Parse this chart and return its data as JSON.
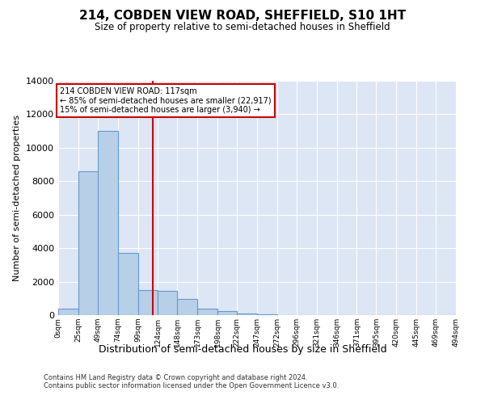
{
  "title": "214, COBDEN VIEW ROAD, SHEFFIELD, S10 1HT",
  "subtitle": "Size of property relative to semi-detached houses in Sheffield",
  "xlabel": "Distribution of semi-detached houses by size in Sheffield",
  "ylabel": "Number of semi-detached properties",
  "footnote1": "Contains HM Land Registry data © Crown copyright and database right 2024.",
  "footnote2": "Contains public sector information licensed under the Open Government Licence v3.0.",
  "property_label": "214 COBDEN VIEW ROAD: 117sqm",
  "pct_smaller_text": "← 85% of semi-detached houses are smaller (22,917)",
  "pct_larger_text": "15% of semi-detached houses are larger (3,940) →",
  "property_size": 117,
  "bin_edges": [
    0,
    25,
    49,
    74,
    99,
    124,
    148,
    173,
    198,
    222,
    247,
    272,
    296,
    321,
    346,
    371,
    395,
    420,
    445,
    469,
    494
  ],
  "bin_counts": [
    400,
    8600,
    11000,
    3700,
    1500,
    1450,
    950,
    380,
    260,
    90,
    50,
    0,
    0,
    0,
    0,
    0,
    0,
    0,
    0,
    0
  ],
  "bar_color": "#b8cfe8",
  "bar_edge_color": "#6699cc",
  "line_color": "#cc0000",
  "annotation_box_color": "#cc0000",
  "bg_color": "#dce6f5",
  "ylim": [
    0,
    14000
  ],
  "yticks": [
    0,
    2000,
    4000,
    6000,
    8000,
    10000,
    12000,
    14000
  ],
  "figsize": [
    6.0,
    5.0
  ],
  "dpi": 100
}
